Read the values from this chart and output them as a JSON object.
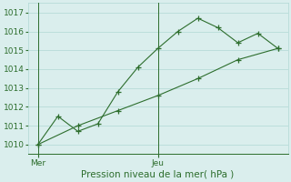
{
  "line1_x": [
    0,
    1,
    2,
    3,
    4,
    5,
    6,
    7,
    8,
    9,
    10,
    11,
    12
  ],
  "line1_y": [
    1010.0,
    1011.5,
    1010.7,
    1011.1,
    1012.8,
    1014.1,
    1015.1,
    1016.0,
    1016.7,
    1016.2,
    1015.4,
    1015.9,
    1015.1
  ],
  "line2_x": [
    0,
    2,
    4,
    6,
    8,
    10,
    12
  ],
  "line2_y": [
    1010.0,
    1011.0,
    1011.8,
    1012.6,
    1013.5,
    1014.5,
    1015.1
  ],
  "line_color": "#2d6e2d",
  "bg_color": "#daeeed",
  "grid_color": "#b0d8d4",
  "ylim_min": 1009.5,
  "ylim_max": 1017.5,
  "yticks": [
    1010,
    1011,
    1012,
    1013,
    1014,
    1015,
    1016,
    1017
  ],
  "day_labels": [
    "Mer",
    "Jeu"
  ],
  "day_positions": [
    0,
    6
  ],
  "xlabel": "Pression niveau de la mer( hPa )",
  "tick_fontsize": 6.5,
  "xlabel_fontsize": 7.5
}
